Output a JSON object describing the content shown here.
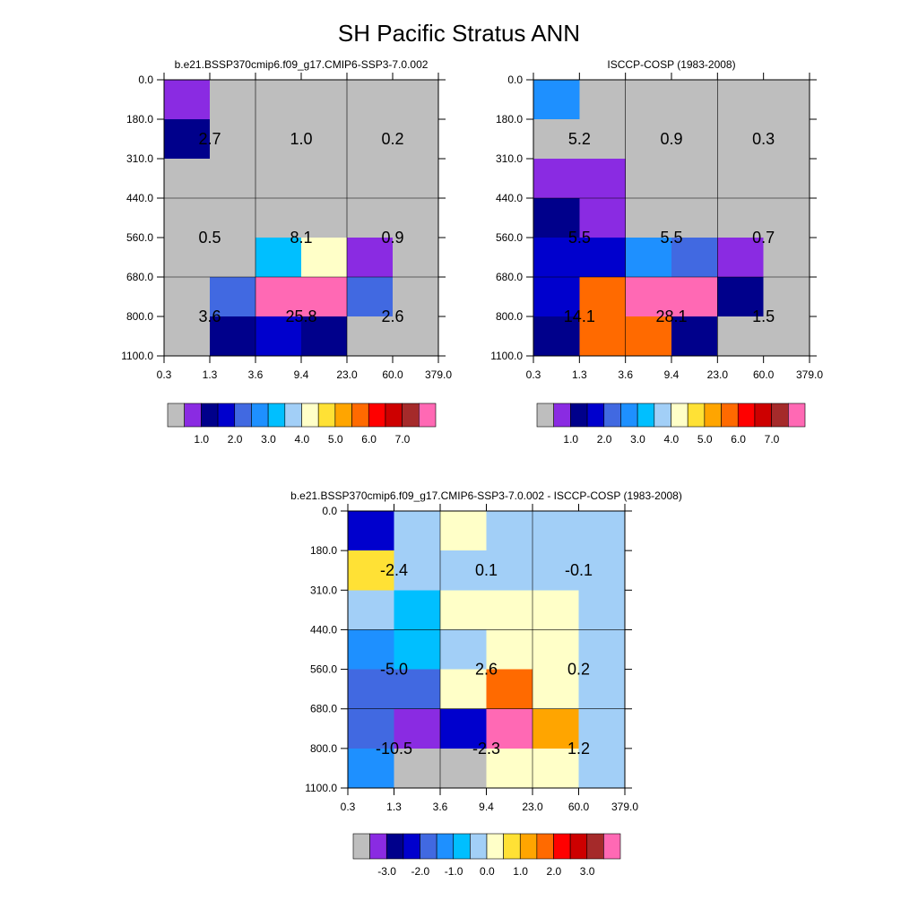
{
  "figure": {
    "title": "SH Pacific Stratus ANN"
  },
  "chart_data": [
    {
      "type": "heatmap",
      "title": "b.e21.BSSP370cmip6.f09_g17.CMIP6-SSP3-7.0.002",
      "x_ticks": [
        "0.3",
        "1.3",
        "3.6",
        "9.4",
        "23.0",
        "60.0",
        "379.0"
      ],
      "y_ticks": [
        "0.0",
        "180.0",
        "310.0",
        "440.0",
        "560.0",
        "680.0",
        "800.0",
        "1100.0"
      ],
      "cells": [
        [
          "purple",
          "gray",
          "gray",
          "gray",
          "gray",
          "gray"
        ],
        [
          "navy",
          "gray",
          "gray",
          "gray",
          "gray",
          "gray"
        ],
        [
          "gray",
          "gray",
          "gray",
          "gray",
          "gray",
          "gray"
        ],
        [
          "gray",
          "gray",
          "gray",
          "gray",
          "gray",
          "gray"
        ],
        [
          "gray",
          "gray",
          "deepskyblue",
          "lightyellow",
          "purple",
          "gray"
        ],
        [
          "gray",
          "royalblue",
          "hotpink",
          "hotpink",
          "royalblue",
          "gray"
        ],
        [
          "gray",
          "navy",
          "mediumblue",
          "navy",
          "gray",
          "gray"
        ]
      ],
      "group_labels": [
        [
          "2.7",
          "1.0",
          "0.2"
        ],
        [
          "0.5",
          "8.1",
          "0.9"
        ],
        [
          "3.6",
          "25.8",
          "2.6"
        ]
      ],
      "colorbar": {
        "colors": [
          "gray",
          "purple",
          "navy",
          "mediumblue",
          "royalblue",
          "dodgerblue",
          "deepskyblue",
          "lightblue",
          "lightyellow",
          "gold",
          "orange",
          "darkorange",
          "red",
          "firebrick",
          "brown",
          "hotpink"
        ],
        "tick_labels": [
          "1.0",
          "2.0",
          "3.0",
          "4.0",
          "5.0",
          "6.0",
          "7.0"
        ]
      }
    },
    {
      "type": "heatmap",
      "title": "ISCCP-COSP (1983-2008)",
      "x_ticks": [
        "0.3",
        "1.3",
        "3.6",
        "9.4",
        "23.0",
        "60.0",
        "379.0"
      ],
      "y_ticks": [
        "0.0",
        "180.0",
        "310.0",
        "440.0",
        "560.0",
        "680.0",
        "800.0",
        "1100.0"
      ],
      "cells": [
        [
          "dodgerblue",
          "gray",
          "gray",
          "gray",
          "gray",
          "gray"
        ],
        [
          "gray",
          "gray",
          "gray",
          "gray",
          "gray",
          "gray"
        ],
        [
          "purple",
          "purple",
          "gray",
          "gray",
          "gray",
          "gray"
        ],
        [
          "navy",
          "purple",
          "gray",
          "gray",
          "gray",
          "gray"
        ],
        [
          "mediumblue",
          "mediumblue",
          "dodgerblue",
          "royalblue",
          "purple",
          "gray"
        ],
        [
          "mediumblue",
          "darkorange",
          "hotpink",
          "hotpink",
          "navy",
          "gray"
        ],
        [
          "navy",
          "darkorange",
          "darkorange",
          "navy",
          "gray",
          "gray"
        ]
      ],
      "group_labels": [
        [
          "5.2",
          "0.9",
          "0.3"
        ],
        [
          "5.5",
          "5.5",
          "0.7"
        ],
        [
          "14.1",
          "28.1",
          "1.5"
        ]
      ],
      "colorbar": {
        "colors": [
          "gray",
          "purple",
          "navy",
          "mediumblue",
          "royalblue",
          "dodgerblue",
          "deepskyblue",
          "lightblue",
          "lightyellow",
          "gold",
          "orange",
          "darkorange",
          "red",
          "firebrick",
          "brown",
          "hotpink"
        ],
        "tick_labels": [
          "1.0",
          "2.0",
          "3.0",
          "4.0",
          "5.0",
          "6.0",
          "7.0"
        ]
      }
    },
    {
      "type": "heatmap",
      "title": "b.e21.BSSP370cmip6.f09_g17.CMIP6-SSP3-7.0.002 - ISCCP-COSP (1983-2008)",
      "x_ticks": [
        "0.3",
        "1.3",
        "3.6",
        "9.4",
        "23.0",
        "60.0",
        "379.0"
      ],
      "y_ticks": [
        "0.0",
        "180.0",
        "310.0",
        "440.0",
        "560.0",
        "680.0",
        "800.0",
        "1100.0"
      ],
      "cells": [
        [
          "mediumblue",
          "lightblue",
          "lightyellow",
          "lightblue",
          "lightblue",
          "lightblue"
        ],
        [
          "gold",
          "lightblue",
          "lightblue",
          "lightblue",
          "lightblue",
          "lightblue"
        ],
        [
          "lightblue",
          "deepskyblue",
          "lightyellow",
          "lightyellow",
          "lightyellow",
          "lightblue"
        ],
        [
          "dodgerblue",
          "deepskyblue",
          "lightblue",
          "lightyellow",
          "lightyellow",
          "lightblue"
        ],
        [
          "royalblue",
          "royalblue",
          "lightyellow",
          "darkorange",
          "lightyellow",
          "lightblue"
        ],
        [
          "royalblue",
          "purple",
          "mediumblue",
          "hotpink",
          "orange",
          "lightblue"
        ],
        [
          "dodgerblue",
          "gray",
          "gray",
          "lightyellow",
          "lightyellow",
          "lightblue"
        ]
      ],
      "group_labels": [
        [
          "-2.4",
          "0.1",
          "-0.1"
        ],
        [
          "-5.0",
          "2.6",
          "0.2"
        ],
        [
          "-10.5",
          "-2.3",
          "1.2"
        ]
      ],
      "colorbar": {
        "colors": [
          "gray",
          "purple",
          "navy",
          "mediumblue",
          "royalblue",
          "dodgerblue",
          "deepskyblue",
          "lightblue",
          "lightyellow",
          "gold",
          "orange",
          "darkorange",
          "red",
          "firebrick",
          "brown",
          "hotpink"
        ],
        "tick_labels": [
          "-3.0",
          "-2.0",
          "-1.0",
          "0.0",
          "1.0",
          "2.0",
          "3.0"
        ]
      }
    }
  ],
  "palette": {
    "gray": "#bebebe",
    "purple": "#8a2be2",
    "navy": "#00008b",
    "mediumblue": "#0000cd",
    "royalblue": "#4169e1",
    "dodgerblue": "#1e90ff",
    "deepskyblue": "#00bfff",
    "lightblue": "#a2cff7",
    "lightyellow": "#ffffc8",
    "gold": "#ffe135",
    "orange": "#ffa500",
    "darkorange": "#ff6a00",
    "red": "#ff0000",
    "firebrick": "#cd0000",
    "brown": "#a52a2a",
    "hotpink": "#ff69b4"
  }
}
